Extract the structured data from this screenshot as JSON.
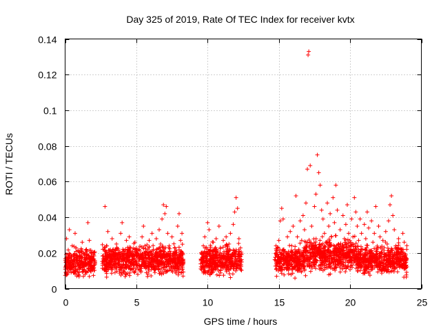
{
  "chart_data": {
    "type": "scatter",
    "title": "Day 325 of 2019, Rate Of TEC Index for receiver kvtx",
    "xlabel": "GPS time / hours",
    "ylabel": "ROTI / TECUs",
    "xlim": [
      0,
      25
    ],
    "ylim": [
      0,
      0.14
    ],
    "xticks": [
      0,
      5,
      10,
      15,
      20,
      25
    ],
    "xtick_labels": [
      "0",
      "5",
      "10",
      "15",
      "20",
      "25"
    ],
    "yticks": [
      0,
      0.02,
      0.04,
      0.06,
      0.08,
      0.1,
      0.12,
      0.14
    ],
    "ytick_labels": [
      "0",
      "0.02",
      "0.04",
      "0.06",
      "0.08",
      "0.1",
      "0.12",
      "0.14"
    ],
    "grid": true,
    "marker": "+",
    "color": "#ff0000",
    "points": [
      [
        0.1,
        0.028
      ],
      [
        0.2,
        0.019
      ],
      [
        0.3,
        0.033
      ],
      [
        0.4,
        0.012
      ],
      [
        0.5,
        0.024
      ],
      [
        0.6,
        0.009
      ],
      [
        0.7,
        0.031
      ],
      [
        0.8,
        0.016
      ],
      [
        0.9,
        0.021
      ],
      [
        1.0,
        0.011
      ],
      [
        1.1,
        0.018
      ],
      [
        1.2,
        0.026
      ],
      [
        1.3,
        0.014
      ],
      [
        1.4,
        0.008
      ],
      [
        1.5,
        0.022
      ],
      [
        1.6,
        0.037
      ],
      [
        1.7,
        0.027
      ],
      [
        1.8,
        0.015
      ],
      [
        1.9,
        0.012
      ],
      [
        2.0,
        0.019
      ],
      [
        2.7,
        0.016
      ],
      [
        2.8,
        0.046
      ],
      [
        2.9,
        0.024
      ],
      [
        3.0,
        0.032
      ],
      [
        3.1,
        0.019
      ],
      [
        3.2,
        0.012
      ],
      [
        3.3,
        0.028
      ],
      [
        3.4,
        0.022
      ],
      [
        3.5,
        0.009
      ],
      [
        3.6,
        0.025
      ],
      [
        3.7,
        0.014
      ],
      [
        3.8,
        0.018
      ],
      [
        3.9,
        0.031
      ],
      [
        4.0,
        0.037
      ],
      [
        4.1,
        0.021
      ],
      [
        4.2,
        0.012
      ],
      [
        4.3,
        0.027
      ],
      [
        4.4,
        0.016
      ],
      [
        4.5,
        0.029
      ],
      [
        4.6,
        0.023
      ],
      [
        4.7,
        0.011
      ],
      [
        4.8,
        0.019
      ],
      [
        4.9,
        0.026
      ],
      [
        5.0,
        0.014
      ],
      [
        5.1,
        0.008
      ],
      [
        5.2,
        0.022
      ],
      [
        5.3,
        0.018
      ],
      [
        5.4,
        0.029
      ],
      [
        5.5,
        0.035
      ],
      [
        5.6,
        0.024
      ],
      [
        5.7,
        0.013
      ],
      [
        5.8,
        0.019
      ],
      [
        5.9,
        0.027
      ],
      [
        6.0,
        0.015
      ],
      [
        6.1,
        0.031
      ],
      [
        6.2,
        0.022
      ],
      [
        6.3,
        0.009
      ],
      [
        6.4,
        0.028
      ],
      [
        6.5,
        0.018
      ],
      [
        6.6,
        0.033
      ],
      [
        6.7,
        0.025
      ],
      [
        6.8,
        0.039
      ],
      [
        6.9,
        0.047
      ],
      [
        7.0,
        0.042
      ],
      [
        7.1,
        0.046
      ],
      [
        7.2,
        0.031
      ],
      [
        7.3,
        0.024
      ],
      [
        7.4,
        0.016
      ],
      [
        7.5,
        0.029
      ],
      [
        7.6,
        0.012
      ],
      [
        7.7,
        0.023
      ],
      [
        7.8,
        0.019
      ],
      [
        7.9,
        0.035
      ],
      [
        8.0,
        0.042
      ],
      [
        8.1,
        0.027
      ],
      [
        8.2,
        0.031
      ],
      [
        9.6,
        0.012
      ],
      [
        9.7,
        0.024
      ],
      [
        9.8,
        0.029
      ],
      [
        9.9,
        0.018
      ],
      [
        10.0,
        0.037
      ],
      [
        10.1,
        0.033
      ],
      [
        10.2,
        0.021
      ],
      [
        10.3,
        0.009
      ],
      [
        10.4,
        0.026
      ],
      [
        10.5,
        0.015
      ],
      [
        10.6,
        0.028
      ],
      [
        10.7,
        0.019
      ],
      [
        10.8,
        0.035
      ],
      [
        10.9,
        0.023
      ],
      [
        11.0,
        0.012
      ],
      [
        11.1,
        0.027
      ],
      [
        11.2,
        0.017
      ],
      [
        11.3,
        0.029
      ],
      [
        11.4,
        0.021
      ],
      [
        11.5,
        0.025
      ],
      [
        11.6,
        0.031
      ],
      [
        11.7,
        0.018
      ],
      [
        11.8,
        0.036
      ],
      [
        11.9,
        0.043
      ],
      [
        12.0,
        0.051
      ],
      [
        12.1,
        0.045
      ],
      [
        12.2,
        0.028
      ],
      [
        12.3,
        0.016
      ],
      [
        14.8,
        0.024
      ],
      [
        14.9,
        0.016
      ],
      [
        15.0,
        0.027
      ],
      [
        15.1,
        0.038
      ],
      [
        15.2,
        0.045
      ],
      [
        15.3,
        0.039
      ],
      [
        15.4,
        0.021
      ],
      [
        15.5,
        0.012
      ],
      [
        15.6,
        0.029
      ],
      [
        15.7,
        0.018
      ],
      [
        15.8,
        0.032
      ],
      [
        15.9,
        0.024
      ],
      [
        16.0,
        0.035
      ],
      [
        16.1,
        0.019
      ],
      [
        16.2,
        0.052
      ],
      [
        16.3,
        0.029
      ],
      [
        16.4,
        0.022
      ],
      [
        16.5,
        0.038
      ],
      [
        16.6,
        0.027
      ],
      [
        16.7,
        0.041
      ],
      [
        16.8,
        0.033
      ],
      [
        16.9,
        0.048
      ],
      [
        17.0,
        0.067
      ],
      [
        17.05,
        0.131
      ],
      [
        17.1,
        0.133
      ],
      [
        17.2,
        0.069
      ],
      [
        17.3,
        0.035
      ],
      [
        17.4,
        0.024
      ],
      [
        17.5,
        0.046
      ],
      [
        17.6,
        0.053
      ],
      [
        17.7,
        0.075
      ],
      [
        17.8,
        0.065
      ],
      [
        17.9,
        0.058
      ],
      [
        18.0,
        0.044
      ],
      [
        18.1,
        0.039
      ],
      [
        18.2,
        0.031
      ],
      [
        18.3,
        0.026
      ],
      [
        18.4,
        0.048
      ],
      [
        18.5,
        0.035
      ],
      [
        18.6,
        0.042
      ],
      [
        18.7,
        0.029
      ],
      [
        18.8,
        0.051
      ],
      [
        18.9,
        0.037
      ],
      [
        19.0,
        0.058
      ],
      [
        19.1,
        0.044
      ],
      [
        19.2,
        0.025
      ],
      [
        19.3,
        0.033
      ],
      [
        19.4,
        0.019
      ],
      [
        19.5,
        0.041
      ],
      [
        19.6,
        0.028
      ],
      [
        19.7,
        0.036
      ],
      [
        19.8,
        0.047
      ],
      [
        19.9,
        0.031
      ],
      [
        20.0,
        0.024
      ],
      [
        20.1,
        0.039
      ],
      [
        20.2,
        0.029
      ],
      [
        20.3,
        0.051
      ],
      [
        20.4,
        0.043
      ],
      [
        20.5,
        0.035
      ],
      [
        20.6,
        0.027
      ],
      [
        20.7,
        0.039
      ],
      [
        20.8,
        0.031
      ],
      [
        20.9,
        0.022
      ],
      [
        21.0,
        0.036
      ],
      [
        21.1,
        0.028
      ],
      [
        21.2,
        0.043
      ],
      [
        21.3,
        0.034
      ],
      [
        21.4,
        0.021
      ],
      [
        21.5,
        0.038
      ],
      [
        21.6,
        0.026
      ],
      [
        21.7,
        0.031
      ],
      [
        21.8,
        0.046
      ],
      [
        21.9,
        0.023
      ],
      [
        22.0,
        0.035
      ],
      [
        22.1,
        0.029
      ],
      [
        22.2,
        0.018
      ],
      [
        22.3,
        0.027
      ],
      [
        22.4,
        0.019
      ],
      [
        22.5,
        0.032
      ],
      [
        22.6,
        0.025
      ],
      [
        22.7,
        0.038
      ],
      [
        22.8,
        0.047
      ],
      [
        22.9,
        0.052
      ],
      [
        23.0,
        0.041
      ],
      [
        23.1,
        0.033
      ],
      [
        23.2,
        0.024
      ],
      [
        23.3,
        0.019
      ],
      [
        23.4,
        0.028
      ],
      [
        23.5,
        0.016
      ],
      [
        23.6,
        0.022
      ],
      [
        23.7,
        0.031
      ],
      [
        23.8,
        0.026
      ],
      [
        23.9,
        0.019
      ]
    ],
    "bands": [
      {
        "x": [
          0.0,
          2.1
        ],
        "y": [
          0.005,
          0.025
        ]
      },
      {
        "x": [
          2.6,
          8.3
        ],
        "y": [
          0.005,
          0.027
        ]
      },
      {
        "x": [
          9.5,
          12.4
        ],
        "y": [
          0.005,
          0.027
        ]
      },
      {
        "x": [
          14.7,
          16.8
        ],
        "y": [
          0.005,
          0.026
        ]
      },
      {
        "x": [
          16.8,
          20.5
        ],
        "y": [
          0.006,
          0.032
        ]
      },
      {
        "x": [
          20.5,
          24.0
        ],
        "y": [
          0.005,
          0.027
        ]
      }
    ]
  }
}
